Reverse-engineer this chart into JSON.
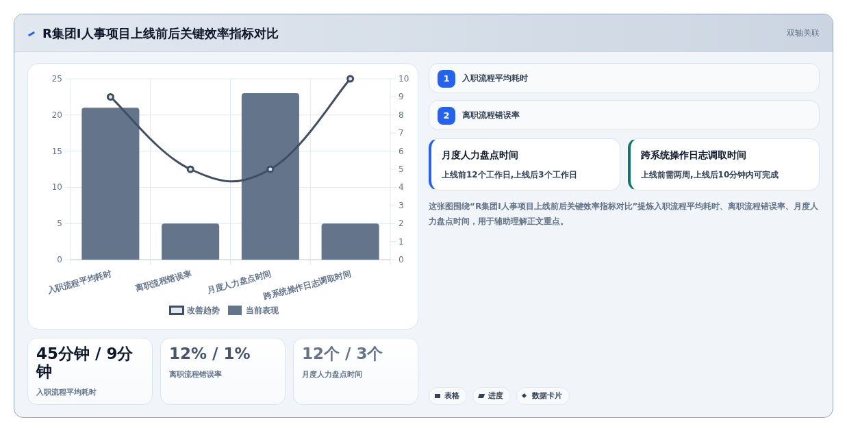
{
  "chart_data": [
    {
      "type": "bar",
      "categories": [
        "入职流程平均耗时",
        "离职流程错误率",
        "月度人力盘点时间",
        "跨系统操作日志调取时间"
      ],
      "series": [
        {
          "name": "改善趋势",
          "type": "line",
          "axis": "y2",
          "color": "#3f4e63",
          "values": [
            9,
            5,
            5,
            10
          ]
        },
        {
          "name": "当前表现",
          "color": "#64748b",
          "values": [
            21,
            5,
            23,
            5
          ]
        }
      ],
      "ylim": [
        0,
        25
      ],
      "yticks": [
        0,
        5,
        10,
        15,
        20,
        25
      ],
      "y2lim": [
        0,
        10
      ],
      "y2ticks": [
        0,
        1,
        2,
        3,
        4,
        5,
        6,
        7,
        8,
        9,
        10
      ],
      "grid": true,
      "legend": "bottom",
      "marker": "circle"
    },
    {
      "type": "other",
      "title": "R集团I人事项目上线前后关键效率指标对比",
      "subtitle": "双轴关联",
      "annotations": [
        "1",
        "入职流程平均耗时",
        "2",
        "离职流程错误率",
        "月度人力盘点时间",
        "上线前12个工作日,上线后3个工作日",
        "跨系统操作日志调取时间",
        "上线前需两周,上线后10分钟内可完成",
        "这张图围绕“R集团I人事项目上线前后关键效率指标对比”提炼入职流程平均耗时、离职流程错误率、月度人力盘点时间，用于辅助理解正文重点。",
        "45分钟 / 9分钟",
        "入职流程平均耗时",
        "12% / 1%",
        "离职流程错误率",
        "12个 / 3个",
        "月度人力盘点时间",
        "表格",
        "进度",
        "数据卡片"
      ]
    }
  ]
}
